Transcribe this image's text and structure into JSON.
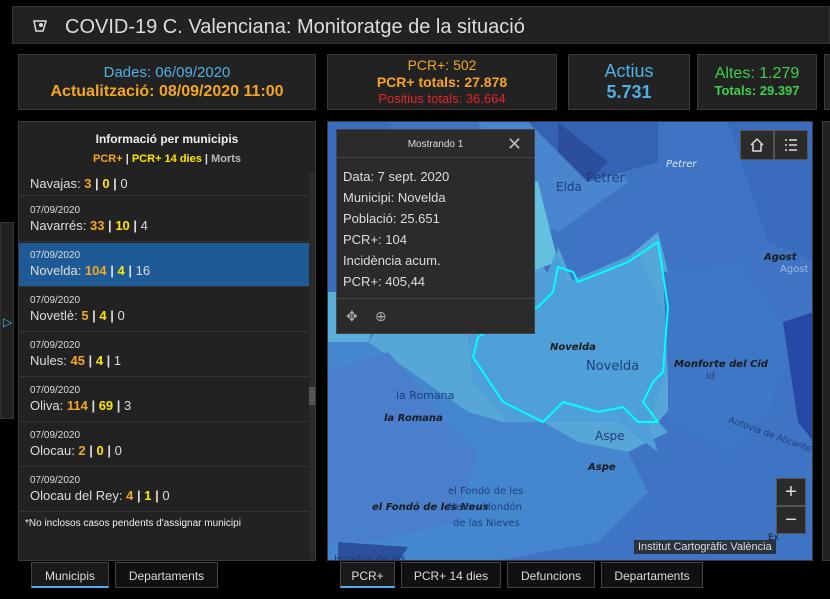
{
  "title": "COVID-19 C. Valenciana: Monitoratge de la situació",
  "stats": {
    "dades_label": "Dades: 06/09/2020",
    "actualitzacio_label": "Actualització: 08/09/2020 11:00",
    "pcr_new": "PCR+: 502",
    "pcr_total": "PCR+ totals: 27.878",
    "positius_total": "Positius totals: 36.664",
    "actius_label": "Actius",
    "actius_value": "5.731",
    "altes": "Altes: 1.279",
    "altes_total": "Totals: 29.397"
  },
  "list": {
    "heading": "Informació per municipis",
    "legend": {
      "pcr": "PCR+",
      "sep1": " | ",
      "pcr14": "PCR+ 14 dies",
      "sep2": " | ",
      "morts": "Morts"
    },
    "items": [
      {
        "date": "",
        "name": "Navajas: ",
        "pcr": "3",
        "pcr14": "0",
        "morts": "0"
      },
      {
        "date": "07/09/2020",
        "name": "Navarrés: ",
        "pcr": "33",
        "pcr14": "10",
        "morts": "4"
      },
      {
        "date": "07/09/2020",
        "name": "Novelda: ",
        "pcr": "104",
        "pcr14": "4",
        "morts": "16"
      },
      {
        "date": "07/09/2020",
        "name": "Novetlè: ",
        "pcr": "5",
        "pcr14": "4",
        "morts": "0"
      },
      {
        "date": "07/09/2020",
        "name": "Nules: ",
        "pcr": "45",
        "pcr14": "4",
        "morts": "1"
      },
      {
        "date": "07/09/2020",
        "name": "Oliva: ",
        "pcr": "114",
        "pcr14": "69",
        "morts": "3"
      },
      {
        "date": "07/09/2020",
        "name": "Olocau: ",
        "pcr": "2",
        "pcr14": "0",
        "morts": "0"
      },
      {
        "date": "07/09/2020",
        "name": "Olocau del Rey: ",
        "pcr": "4",
        "pcr14": "1",
        "morts": "0"
      }
    ],
    "separator": " | ",
    "footnote": "*No inclosos casos pendents d'assignar municipi"
  },
  "popup": {
    "header": "Mostrando 1",
    "lines": [
      "Data: 7 sept. 2020",
      "Municipi: Novelda",
      "Població: 25.651",
      "PCR+: 104",
      "Incidència acum.",
      "PCR+: 405,44"
    ]
  },
  "map": {
    "labels": [
      "Elda",
      "Petrer",
      "Petrer",
      "Agost",
      "Agost",
      "Novelda",
      "Novelda",
      "Monforte del Cid",
      "id",
      "la Romana",
      "la Romana",
      "Aspe",
      "Aspe",
      "el Fondó de les Neus",
      "el Fondó de les",
      "Neus - Hondón",
      "de las Nieves",
      "Autovia de Alicante",
      "Ex",
      "Hondón de los"
    ],
    "attribution": "Institut Cartogràfic València",
    "zoom_in": "+",
    "zoom_out": "−"
  },
  "tabs_left": [
    "Municipis",
    "Departaments"
  ],
  "tabs_map": [
    "PCR+",
    "PCR+ 14 dies",
    "Defuncions",
    "Departaments"
  ],
  "colors": {
    "accent": "#4fb0e8",
    "orange": "#f5a623",
    "yellow": "#ffe600",
    "red": "#e3262a",
    "green": "#3fcf4a",
    "selected": "#1e5b96"
  },
  "icons": [
    "virus-icon",
    "home-icon",
    "list-icon",
    "close-icon",
    "pan-icon",
    "zoom-to-icon",
    "expand-arrow-icon"
  ]
}
